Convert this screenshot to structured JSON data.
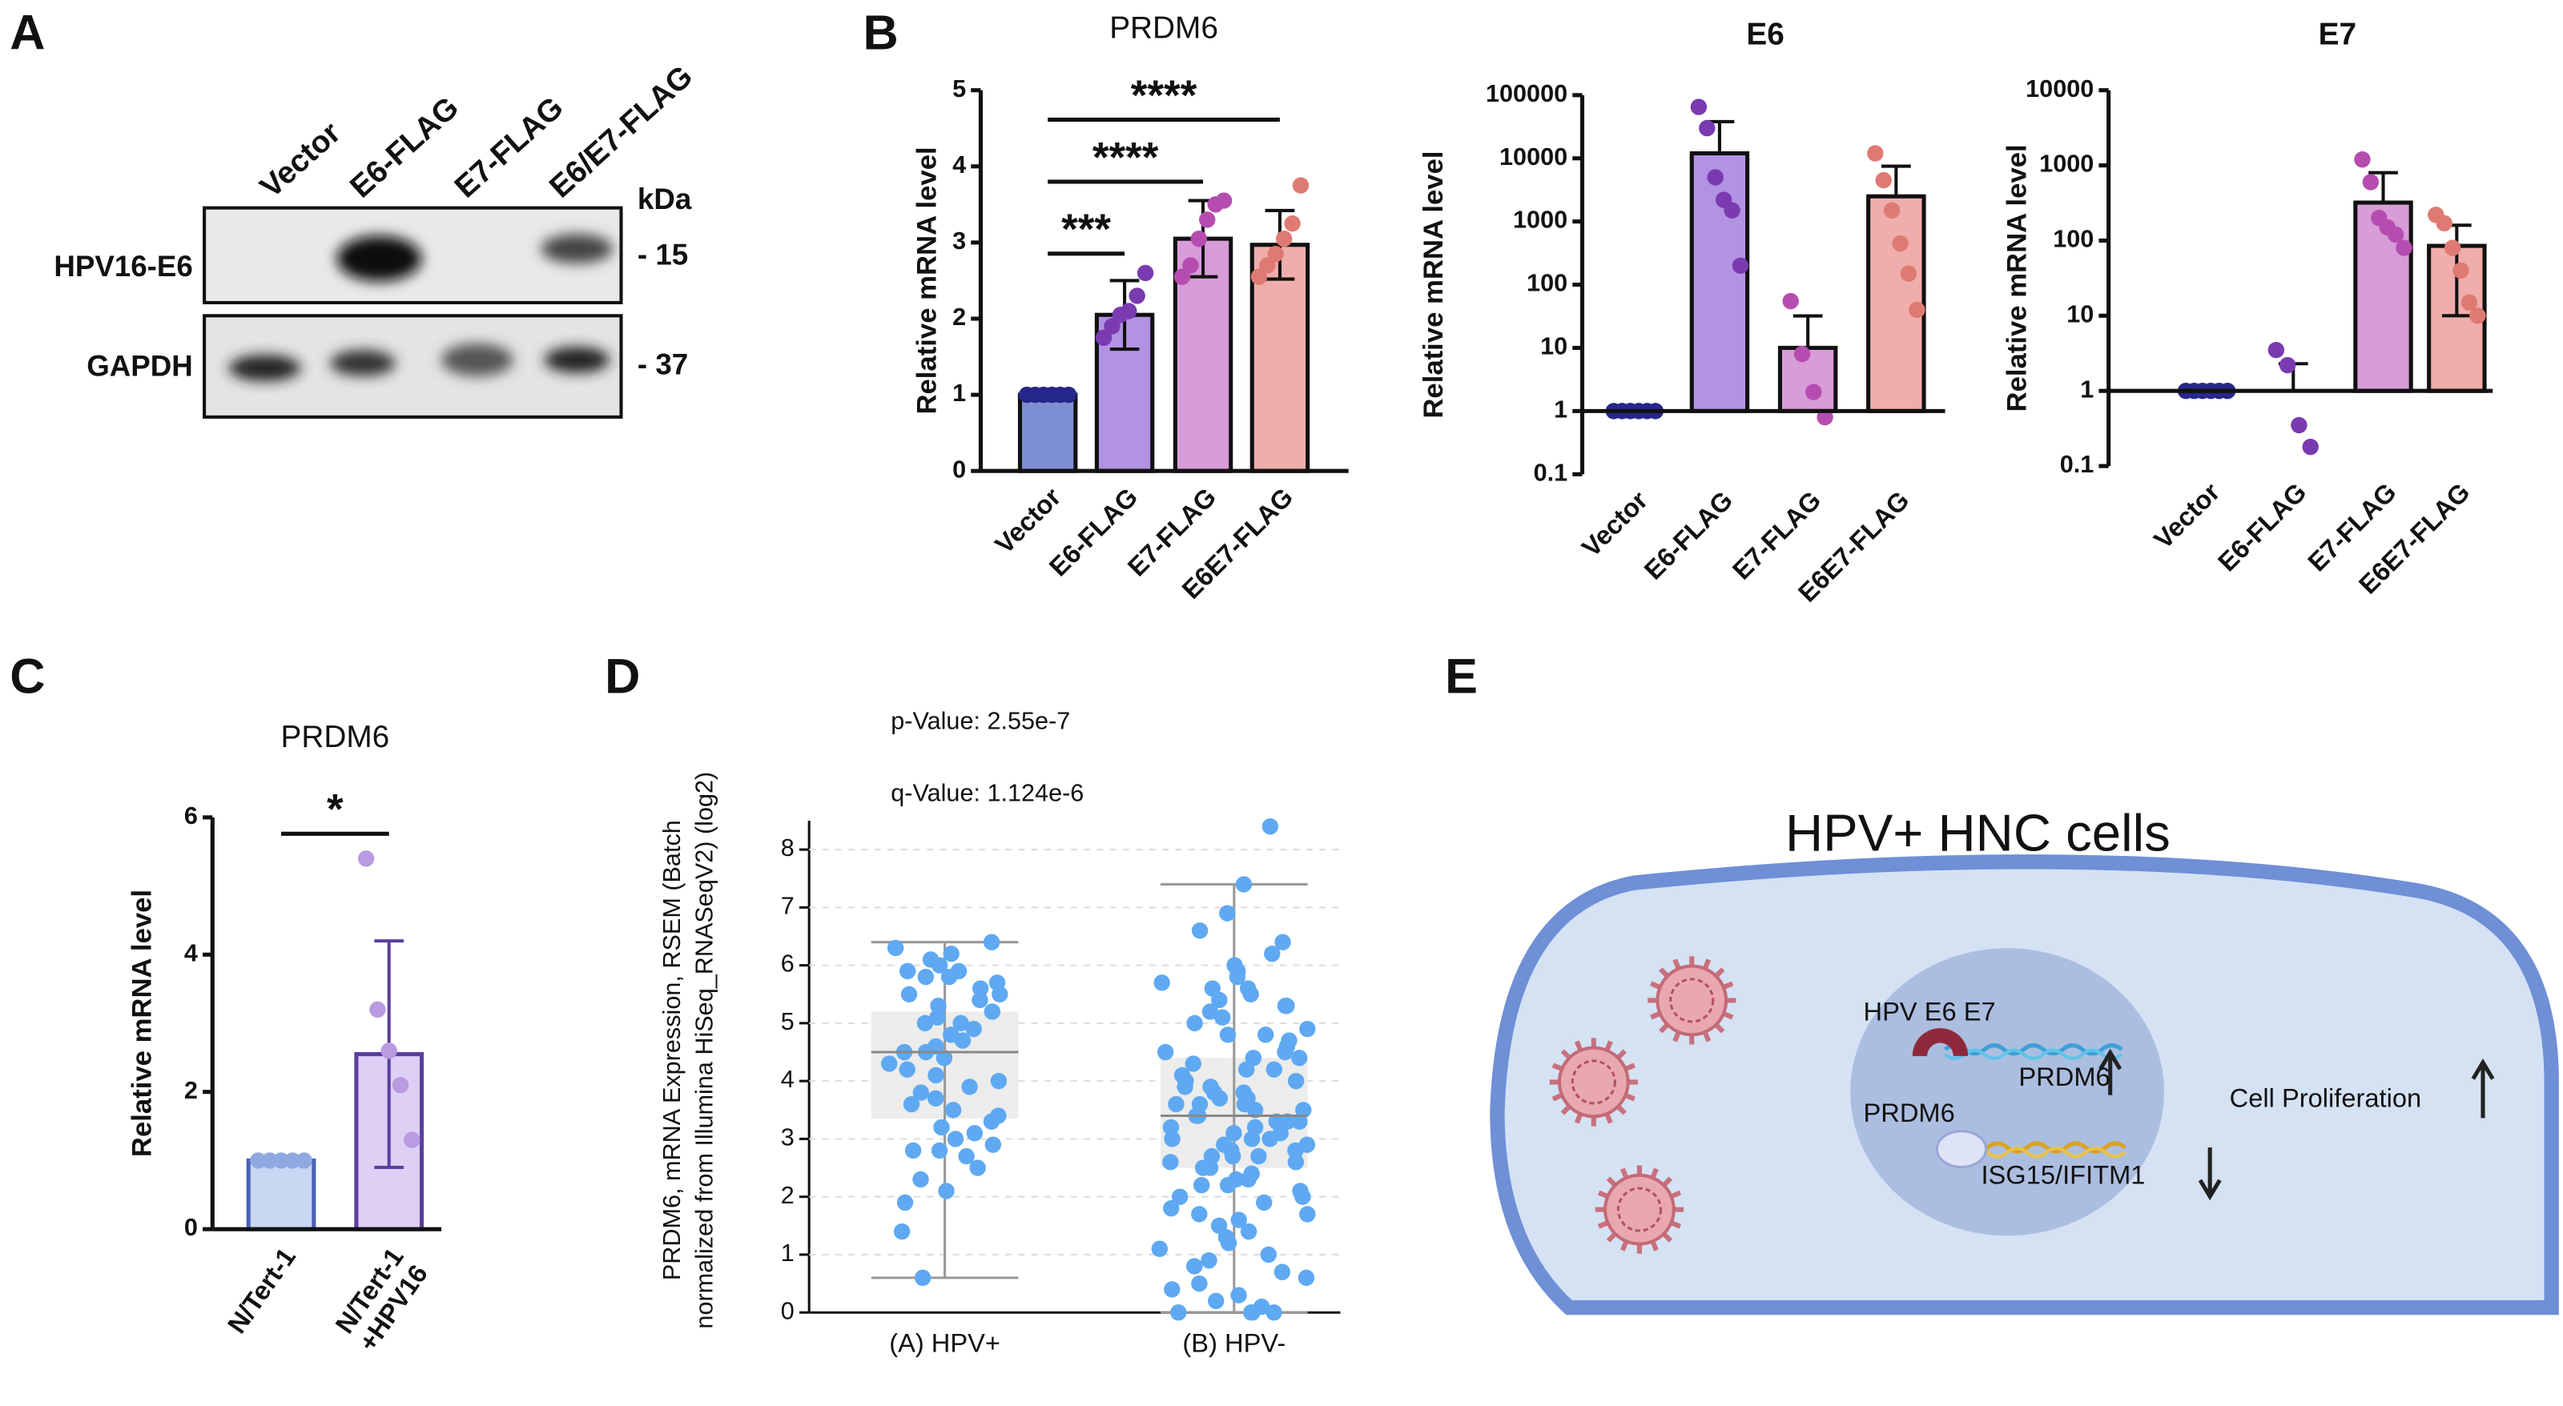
{
  "panel_labels": [
    "A",
    "B",
    "C",
    "D",
    "E"
  ],
  "blot": {
    "lanes": [
      "Vector",
      "E6-FLAG",
      "E7-FLAG",
      "E6/E7-FLAG"
    ],
    "unit": "kDa",
    "rows": [
      {
        "label": "HPV16-E6",
        "marker": "- 15"
      },
      {
        "label": "GAPDH",
        "marker": "- 37"
      }
    ]
  },
  "chart_data": [
    {
      "type": "bar",
      "title": "PRDM6",
      "ylabel": "Relative mRNA level",
      "categories": [
        "Vector",
        "E6-FLAG",
        "E7-FLAG",
        "E6E7-FLAG"
      ],
      "values": [
        1,
        2.05,
        3.05,
        2.97
      ],
      "errors": [
        0,
        0.45,
        0.5,
        0.45
      ],
      "points": [
        [
          1,
          1,
          1,
          1,
          1,
          1
        ],
        [
          1.75,
          1.9,
          2.05,
          2.1,
          2.3,
          2.6
        ],
        [
          2.55,
          2.7,
          3.05,
          3.3,
          3.5,
          3.55
        ],
        [
          2.55,
          2.7,
          2.85,
          3.05,
          3.25,
          3.75
        ]
      ],
      "ylim": [
        0,
        5
      ],
      "yticks": [
        0,
        1,
        2,
        3,
        4,
        5
      ],
      "log": false,
      "colors": [
        "#7d8fd2",
        "#b292e2",
        "#d89cd8",
        "#efaeab"
      ],
      "point_colors": [
        "#26278a",
        "#7a3bb1",
        "#b54db0",
        "#df7a73"
      ],
      "significance": [
        {
          "label": "***"
        },
        {
          "label": "****"
        },
        {
          "label": "****"
        }
      ]
    },
    {
      "type": "bar",
      "title": "E6",
      "ylabel": "Relative mRNA level",
      "categories": [
        "Vector",
        "E6-FLAG",
        "E7-FLAG",
        "E6E7-FLAG"
      ],
      "values": [
        1,
        12000,
        10,
        2500
      ],
      "errors": [
        0,
        26000,
        22,
        5000
      ],
      "points": [
        [
          1,
          1,
          1,
          1,
          1,
          1
        ],
        [
          65000,
          30000,
          5000,
          2200,
          1500,
          200
        ],
        [
          55,
          8,
          2,
          0.8
        ],
        [
          12000,
          4500,
          1500,
          450,
          150,
          40
        ]
      ],
      "ylim": [
        0.1,
        100000
      ],
      "yticks": [
        0.1,
        1,
        10,
        100,
        1000,
        10000,
        100000
      ],
      "log": true,
      "colors": [
        "#7d8fd2",
        "#b292e2",
        "#d89cd8",
        "#efaeab"
      ],
      "point_colors": [
        "#26278a",
        "#7a3bb1",
        "#b54db0",
        "#df7a73"
      ]
    },
    {
      "type": "bar",
      "title": "E7",
      "ylabel": "Relative mRNA level",
      "categories": [
        "Vector",
        "E6-FLAG",
        "E7-FLAG",
        "E6E7-FLAG"
      ],
      "values": [
        1,
        1,
        320,
        85
      ],
      "errors": [
        0,
        1.3,
        480,
        75
      ],
      "points": [
        [
          1,
          1,
          1,
          1,
          1,
          1
        ],
        [
          3.5,
          2.2,
          0.35,
          0.18
        ],
        [
          1200,
          600,
          200,
          150,
          120,
          80
        ],
        [
          220,
          170,
          80,
          40,
          15,
          10
        ]
      ],
      "ylim": [
        0.1,
        10000
      ],
      "yticks": [
        0.1,
        1,
        10,
        100,
        1000,
        10000
      ],
      "log": true,
      "colors": [
        "#7d8fd2",
        "#b292e2",
        "#d89cd8",
        "#efaeab"
      ],
      "point_colors": [
        "#26278a",
        "#7a3bb1",
        "#b54db0",
        "#df7a73"
      ]
    },
    {
      "type": "bar",
      "title": "PRDM6",
      "ylabel": "Relative mRNA level",
      "categories": [
        [
          "N/Tert-1"
        ],
        [
          "N/Tert-1",
          "+HPV16"
        ]
      ],
      "values": [
        1,
        2.55
      ],
      "errors": [
        0,
        1.65
      ],
      "points": [
        [
          1,
          1,
          1,
          1,
          1
        ],
        [
          5.4,
          3.2,
          2.6,
          2.1,
          1.3
        ]
      ],
      "ylim": [
        0,
        6
      ],
      "yticks": [
        0,
        2,
        4,
        6
      ],
      "log": false,
      "colors": [
        "#c9d7f3",
        "#ddd0f4"
      ],
      "edge_colors": [
        "#4a62b5",
        "#5b3f9c"
      ],
      "point_colors": [
        "#8fa8e0",
        "#b89be0"
      ],
      "significance": [
        {
          "label": "*"
        }
      ]
    },
    {
      "type": "box",
      "ylabel": [
        "PRDM6, mRNA Expression, RSEM (Batch",
        "normalized from Illumina HiSeq_RNASeqV2) (log2)"
      ],
      "annotations": [
        "p-Value: 2.55e-7",
        "q-Value: 1.124e-6"
      ],
      "categories": [
        "(A) HPV+",
        "(B) HPV-"
      ],
      "whisker_low": [
        0.6,
        0
      ],
      "q1": [
        3.35,
        2.5
      ],
      "median": [
        4.5,
        3.4
      ],
      "q3": [
        5.2,
        4.4
      ],
      "whisker_high": [
        6.4,
        7.4
      ],
      "points": [
        [
          6.4,
          6.3,
          6.2,
          6.1,
          6.0,
          5.9,
          5.9,
          5.8,
          5.8,
          5.7,
          5.6,
          5.5,
          5.5,
          5.4,
          5.3,
          5.2,
          5.1,
          5.0,
          5.0,
          4.9,
          4.8,
          4.7,
          4.6,
          4.5,
          4.5,
          4.4,
          4.3,
          4.2,
          4.1,
          4.0,
          3.9,
          3.8,
          3.7,
          3.6,
          3.5,
          3.4,
          3.3,
          3.2,
          3.1,
          3.0,
          2.9,
          2.8,
          2.8,
          2.7,
          2.5,
          2.3,
          2.1,
          1.9,
          1.4,
          0.6
        ],
        [
          8.4,
          7.4,
          6.9,
          6.6,
          6.4,
          6.2,
          6.0,
          5.9,
          5.8,
          5.7,
          5.6,
          5.5,
          5.4,
          5.3,
          5.2,
          5.1,
          5.0,
          4.9,
          4.8,
          4.7,
          4.6,
          4.5,
          4.4,
          4.4,
          4.3,
          4.2,
          4.1,
          4.0,
          4.0,
          3.9,
          3.8,
          3.8,
          3.7,
          3.6,
          3.6,
          3.5,
          3.5,
          3.4,
          3.4,
          3.3,
          3.3,
          3.2,
          3.2,
          3.1,
          3.1,
          3.0,
          3.0,
          2.9,
          2.9,
          2.8,
          2.8,
          2.7,
          2.7,
          2.6,
          2.6,
          2.5,
          2.5,
          2.4,
          2.3,
          2.3,
          2.2,
          2.1,
          2.0,
          2.0,
          1.9,
          1.8,
          1.7,
          1.6,
          1.5,
          1.4,
          1.3,
          1.2,
          1.1,
          1.0,
          0.9,
          0.8,
          0.7,
          0.6,
          0.5,
          0.4,
          0.3,
          0.2,
          0.1,
          0,
          0,
          0,
          0,
          4.8,
          4.2,
          3.9,
          3.6,
          3.3,
          3.0,
          2.7,
          5.3,
          5.6,
          4.5,
          2.2,
          1.7,
          3.7
        ]
      ],
      "ylim": [
        0,
        8.5
      ],
      "yticks": [
        0,
        1,
        2,
        3,
        4,
        5,
        6,
        7,
        8
      ],
      "grid": true,
      "color": "#5fa9f2",
      "box_color": "#ececec"
    }
  ],
  "diagram": {
    "title": "HPV+ HNC cells",
    "oncoproteins": "HPV E6 E7",
    "gene": "PRDM6",
    "regulator": "PRDM6",
    "targets": "ISG15/IFITM1",
    "outcome": "Cell Proliferation"
  }
}
